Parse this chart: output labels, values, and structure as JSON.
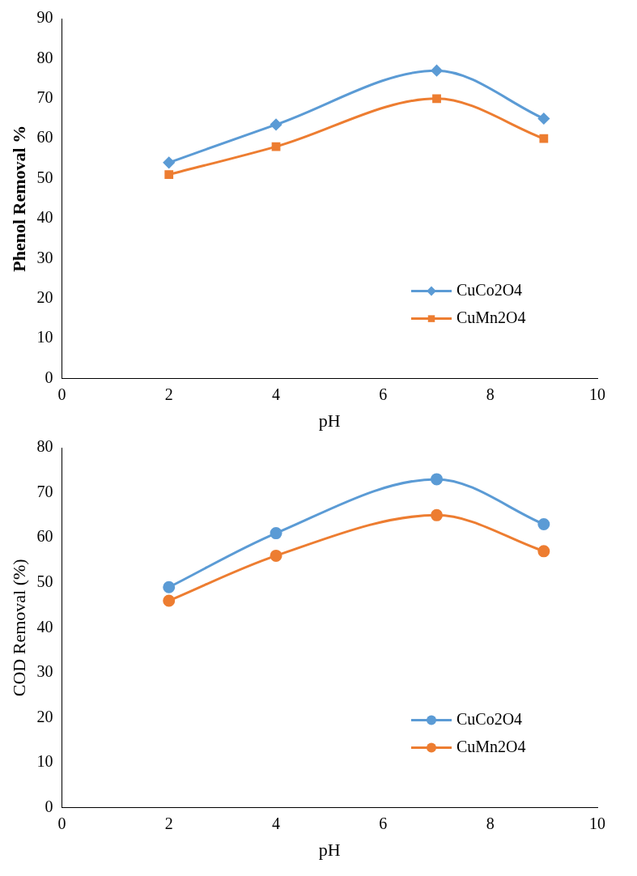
{
  "chart_data": [
    {
      "type": "line",
      "xlabel": "pH",
      "ylabel": "Phenol Removal %",
      "xlim": [
        0,
        10
      ],
      "xticks": [
        0,
        2,
        4,
        6,
        8,
        10
      ],
      "ylim": [
        0,
        90
      ],
      "yticks": [
        0,
        10,
        20,
        30,
        40,
        50,
        60,
        70,
        80,
        90
      ],
      "grid": false,
      "legend": "bottom right",
      "x": [
        2,
        4,
        7,
        9
      ],
      "series": [
        {
          "name": "CuCo2O4",
          "color": "#5b9bd5",
          "marker": "diamond",
          "values": [
            54,
            63.5,
            77,
            65
          ]
        },
        {
          "name": "CuMn2O4",
          "color": "#ed7d31",
          "marker": "square",
          "values": [
            51,
            58,
            70,
            60
          ]
        }
      ]
    },
    {
      "type": "line",
      "xlabel": "pH",
      "ylabel": "COD Removal (%)",
      "xlim": [
        0,
        10
      ],
      "xticks": [
        0,
        2,
        4,
        6,
        8,
        10
      ],
      "ylim": [
        0,
        80
      ],
      "yticks": [
        0,
        10,
        20,
        30,
        40,
        50,
        60,
        70,
        80
      ],
      "grid": false,
      "legend": "bottom right",
      "x": [
        2,
        4,
        7,
        9
      ],
      "series": [
        {
          "name": "CuCo2O4",
          "color": "#5b9bd5",
          "marker": "circle",
          "values": [
            49,
            61,
            73,
            63
          ]
        },
        {
          "name": "CuMn2O4",
          "color": "#ed7d31",
          "marker": "circle",
          "values": [
            46,
            56,
            65,
            57
          ]
        }
      ]
    }
  ]
}
